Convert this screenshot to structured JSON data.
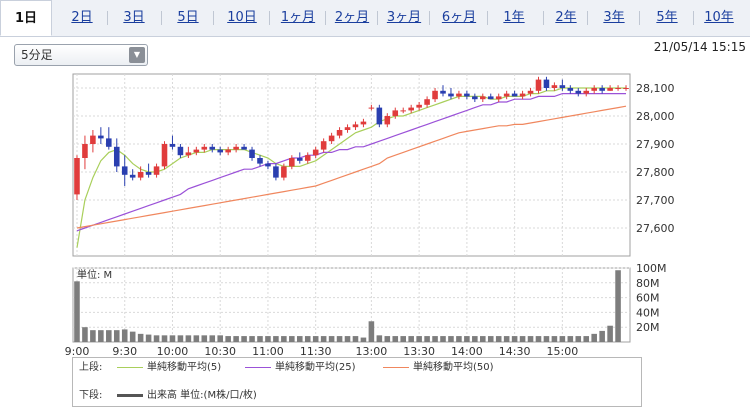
{
  "tabs": [
    {
      "label": "1日",
      "active": true
    },
    {
      "label": "2日"
    },
    {
      "label": "3日"
    },
    {
      "label": "5日"
    },
    {
      "label": "10日"
    },
    {
      "label": "1ヶ月"
    },
    {
      "label": "2ヶ月"
    },
    {
      "label": "3ヶ月"
    },
    {
      "label": "6ヶ月"
    },
    {
      "label": "1年"
    },
    {
      "label": "2年"
    },
    {
      "label": "3年"
    },
    {
      "label": "5年"
    },
    {
      "label": "10年"
    }
  ],
  "interval_select": {
    "value": "5分足"
  },
  "timestamp": "21/05/14 15:15",
  "legend": {
    "upper_label": "上段:",
    "lower_label": "下段:",
    "ma5": "単純移動平均(5)",
    "ma25": "単純移動平均(25)",
    "ma50": "単純移動平均(50)",
    "volume": "出来高 単位:(M株/口/枚)"
  },
  "colors": {
    "ma5": "#a9cf5b",
    "ma25": "#9b52d8",
    "ma50": "#f0875e",
    "up": "#e03c3c",
    "down": "#2a3fb0",
    "volume": "#7d7d7d"
  },
  "chart_data": {
    "type": "candlestick",
    "x_ticks": [
      "9:00",
      "9:30",
      "10:00",
      "10:30",
      "11:00",
      "11:30",
      "13:00",
      "13:30",
      "14:00",
      "14:30",
      "15:00"
    ],
    "price": {
      "ylim": [
        27500,
        28150
      ],
      "y_ticks": [
        27600,
        27700,
        27800,
        27900,
        28000,
        28100
      ],
      "y_tick_labels": [
        "27,600",
        "27,700",
        "27,800",
        "27,900",
        "28,000",
        "28,100"
      ],
      "candles": [
        [
          27720,
          27860,
          27700,
          27850
        ],
        [
          27850,
          27930,
          27810,
          27900
        ],
        [
          27900,
          27950,
          27870,
          27930
        ],
        [
          27930,
          27960,
          27900,
          27920
        ],
        [
          27920,
          27960,
          27880,
          27890
        ],
        [
          27890,
          27920,
          27800,
          27820
        ],
        [
          27820,
          27860,
          27750,
          27790
        ],
        [
          27790,
          27810,
          27770,
          27780
        ],
        [
          27780,
          27820,
          27770,
          27800
        ],
        [
          27800,
          27830,
          27780,
          27790
        ],
        [
          27790,
          27830,
          27780,
          27820
        ],
        [
          27820,
          27910,
          27810,
          27900
        ],
        [
          27900,
          27930,
          27880,
          27890
        ],
        [
          27890,
          27900,
          27850,
          27860
        ],
        [
          27860,
          27890,
          27850,
          27870
        ],
        [
          27870,
          27890,
          27860,
          27880
        ],
        [
          27880,
          27900,
          27870,
          27890
        ],
        [
          27890,
          27900,
          27870,
          27880
        ],
        [
          27880,
          27890,
          27860,
          27870
        ],
        [
          27870,
          27890,
          27860,
          27880
        ],
        [
          27880,
          27900,
          27870,
          27890
        ],
        [
          27890,
          27900,
          27880,
          27880
        ],
        [
          27880,
          27890,
          27840,
          27850
        ],
        [
          27850,
          27860,
          27820,
          27830
        ],
        [
          27830,
          27840,
          27810,
          27820
        ],
        [
          27820,
          27830,
          27770,
          27780
        ],
        [
          27780,
          27830,
          27770,
          27820
        ],
        [
          27820,
          27860,
          27810,
          27850
        ],
        [
          27850,
          27870,
          27830,
          27840
        ],
        [
          27840,
          27870,
          27830,
          27860
        ],
        [
          27860,
          27890,
          27850,
          27880
        ],
        [
          27880,
          27920,
          27870,
          27910
        ],
        [
          27910,
          27940,
          27900,
          27930
        ],
        [
          27930,
          27960,
          27920,
          27950
        ],
        [
          27950,
          27970,
          27940,
          27960
        ],
        [
          27960,
          27980,
          27950,
          27970
        ],
        [
          27970,
          27990,
          27960,
          27980
        ],
        [
          28030,
          28040,
          28020,
          28030
        ],
        [
          28030,
          28040,
          27960,
          27970
        ],
        [
          27970,
          28010,
          27960,
          28000
        ],
        [
          28000,
          28030,
          27990,
          28020
        ],
        [
          28020,
          28030,
          28010,
          28020
        ],
        [
          28020,
          28040,
          28010,
          28030
        ],
        [
          28030,
          28050,
          28020,
          28040
        ],
        [
          28040,
          28070,
          28030,
          28060
        ],
        [
          28060,
          28100,
          28050,
          28090
        ],
        [
          28090,
          28110,
          28070,
          28080
        ],
        [
          28080,
          28100,
          28060,
          28070
        ],
        [
          28070,
          28090,
          28060,
          28080
        ],
        [
          28080,
          28090,
          28060,
          28070
        ],
        [
          28070,
          28080,
          28050,
          28060
        ],
        [
          28060,
          28080,
          28050,
          28070
        ],
        [
          28070,
          28080,
          28060,
          28060
        ],
        [
          28060,
          28080,
          28050,
          28070
        ],
        [
          28070,
          28090,
          28060,
          28080
        ],
        [
          28080,
          28090,
          28070,
          28070
        ],
        [
          28070,
          28090,
          28060,
          28080
        ],
        [
          28080,
          28100,
          28070,
          28090
        ],
        [
          28090,
          28140,
          28080,
          28130
        ],
        [
          28130,
          28140,
          28090,
          28100
        ],
        [
          28100,
          28120,
          28090,
          28110
        ],
        [
          28110,
          28130,
          28090,
          28100
        ],
        [
          28100,
          28110,
          28080,
          28090
        ],
        [
          28090,
          28100,
          28070,
          28080
        ],
        [
          28080,
          28100,
          28070,
          28090
        ],
        [
          28090,
          28110,
          28080,
          28100
        ],
        [
          28100,
          28110,
          28080,
          28090
        ],
        [
          28090,
          28110,
          28090,
          28100
        ],
        [
          28100,
          28110,
          28090,
          28100
        ],
        [
          28100,
          28110,
          28090,
          28100
        ]
      ],
      "series": [
        {
          "name": "単純移動平均(5)",
          "values": [
            27530,
            27700,
            27780,
            27840,
            27870,
            27880,
            27860,
            27830,
            27810,
            27800,
            27800,
            27810,
            27830,
            27850,
            27860,
            27870,
            27870,
            27880,
            27880,
            27880,
            27880,
            27880,
            27870,
            27860,
            27850,
            27830,
            27820,
            27820,
            27820,
            27830,
            27840,
            27860,
            27880,
            27900,
            27920,
            27940,
            27950,
            27960,
            27980,
            27990,
            28000,
            28000,
            28010,
            28020,
            28030,
            28040,
            28050,
            28060,
            28070,
            28070,
            28070,
            28070,
            28060,
            28060,
            28070,
            28070,
            28070,
            28080,
            28080,
            28090,
            28090,
            28100,
            28100,
            28100,
            28100,
            28100,
            28100,
            28100,
            28100,
            28100
          ]
        },
        {
          "name": "単純移動平均(25)",
          "values": [
            27590,
            27600,
            27610,
            27620,
            27630,
            27640,
            27650,
            27660,
            27670,
            27680,
            27690,
            27700,
            27710,
            27720,
            27740,
            27750,
            27760,
            27770,
            27780,
            27790,
            27800,
            27810,
            27810,
            27820,
            27830,
            27830,
            27840,
            27850,
            27850,
            27860,
            27860,
            27870,
            27870,
            27880,
            27880,
            27890,
            27890,
            27900,
            27910,
            27920,
            27930,
            27940,
            27950,
            27960,
            27970,
            27980,
            27990,
            28000,
            28010,
            28020,
            28030,
            28040,
            28040,
            28050,
            28050,
            28060,
            28060,
            28060,
            28070,
            28070,
            28070,
            28080,
            28080,
            28080,
            28080,
            28080,
            28080,
            28080,
            28080,
            28080
          ]
        },
        {
          "name": "単純移動平均(50)",
          "values": [
            27600,
            27605,
            27610,
            27615,
            27620,
            27625,
            27630,
            27635,
            27640,
            27645,
            27650,
            27655,
            27660,
            27665,
            27670,
            27675,
            27680,
            27685,
            27690,
            27695,
            27700,
            27705,
            27710,
            27715,
            27720,
            27725,
            27730,
            27735,
            27740,
            27745,
            27750,
            27760,
            27770,
            27780,
            27790,
            27800,
            27810,
            27820,
            27830,
            27850,
            27860,
            27870,
            27880,
            27890,
            27900,
            27910,
            27920,
            27930,
            27940,
            27945,
            27950,
            27955,
            27960,
            27965,
            27965,
            27970,
            27970,
            27975,
            27980,
            27985,
            27990,
            27995,
            28000,
            28005,
            28010,
            28015,
            28020,
            28025,
            28030,
            28035
          ]
        }
      ]
    },
    "volume": {
      "unit_label": "単位: M",
      "ylim": [
        0,
        100
      ],
      "y_ticks": [
        20,
        40,
        60,
        80,
        100
      ],
      "y_tick_labels": [
        "20M",
        "40M",
        "60M",
        "80M",
        "100M"
      ],
      "values": [
        82,
        20,
        16,
        16,
        16,
        16,
        17,
        14,
        11,
        10,
        9,
        9,
        9,
        9,
        9,
        9,
        9,
        9,
        9,
        8,
        8,
        8,
        8,
        8,
        8,
        8,
        8,
        8,
        8,
        8,
        8,
        8,
        8,
        8,
        8,
        8,
        6,
        28,
        9,
        8,
        8,
        8,
        8,
        8,
        8,
        8,
        8,
        8,
        8,
        8,
        8,
        8,
        8,
        8,
        8,
        8,
        8,
        8,
        8,
        8,
        8,
        8,
        8,
        8,
        8,
        11,
        15,
        22,
        97,
        0
      ]
    }
  }
}
